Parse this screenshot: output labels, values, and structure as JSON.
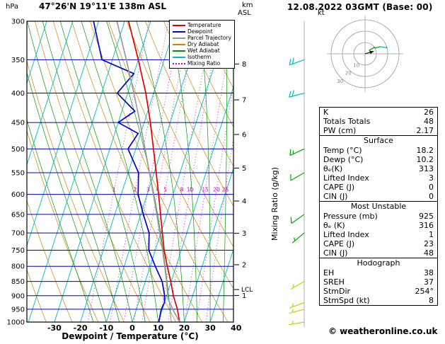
{
  "header": {
    "pressure_unit": "hPa",
    "station": "47°26'N 19°11'E 138m ASL",
    "altitude_unit_top": "km",
    "altitude_unit_bottom": "ASL",
    "datetime": "12.08.2022 03GMT (Base: 00)"
  },
  "legend": {
    "items": [
      {
        "label": "Temperature",
        "key": "temperature",
        "dashed": false
      },
      {
        "label": "Dewpoint",
        "key": "dewpoint",
        "dashed": false
      },
      {
        "label": "Parcel Trajectory",
        "key": "parcel",
        "dashed": false
      },
      {
        "label": "Dry Adiabat",
        "key": "dry_adiabat",
        "dashed": false
      },
      {
        "label": "Wet Adiabat",
        "key": "wet_adiabat",
        "dashed": false
      },
      {
        "label": "Isotherm",
        "key": "isotherm",
        "dashed": false
      },
      {
        "label": "Mixing Ratio",
        "key": "mixing_ratio",
        "dashed": true
      }
    ]
  },
  "colors": {
    "temperature": "#dd0000",
    "dewpoint": "#0000cc",
    "parcel": "#999999",
    "dry_adiabat": "#cc8800",
    "wet_adiabat": "#009900",
    "isotherm": "#00bbbb",
    "mixing_ratio": "#cc00cc",
    "pressure_line": "#0000bb",
    "frame": "#000000",
    "barb_upper": "#00bbbb",
    "barb_mid": "#00aa00",
    "barb_low": "#cccc00",
    "hodo_grid": "#999999"
  },
  "axes": {
    "pressure_ticks": [
      300,
      350,
      400,
      450,
      500,
      550,
      600,
      650,
      700,
      750,
      800,
      850,
      900,
      950,
      1000
    ],
    "temp_ticks": [
      -30,
      -20,
      -10,
      0,
      10,
      20,
      30,
      40
    ],
    "xlabel": "Dewpoint / Temperature (°C)",
    "mixing_ratio_axis_label": "Mixing Ratio (g/kg)",
    "km_ticks": [
      1,
      2,
      3,
      4,
      5,
      6,
      7,
      8
    ],
    "lcl_label": "LCL"
  },
  "chart_data": {
    "type": "line",
    "variant": "skew-t-log-p",
    "title": "47°26'N 19°11'E 138m ASL",
    "x_axis": {
      "label": "Dewpoint / Temperature (°C)",
      "ticks": [
        -30,
        -20,
        -10,
        0,
        10,
        20,
        30,
        40
      ]
    },
    "y_axis": {
      "label": "hPa",
      "scale": "log",
      "ticks": [
        300,
        350,
        400,
        450,
        500,
        550,
        600,
        650,
        700,
        750,
        800,
        850,
        900,
        950,
        1000
      ]
    },
    "km_axis": {
      "ticks": [
        1,
        2,
        3,
        4,
        5,
        6,
        7,
        8
      ]
    },
    "mixing_ratio_values": [
      1,
      2,
      3,
      4,
      5,
      8,
      10,
      15,
      20,
      25
    ],
    "lcl_pressure": 878,
    "series": [
      {
        "name": "Temperature",
        "color_key": "temperature",
        "points": [
          [
            1000,
            18.2
          ],
          [
            950,
            15.8
          ],
          [
            925,
            14.2
          ],
          [
            900,
            12.6
          ],
          [
            850,
            9.8
          ],
          [
            800,
            6.6
          ],
          [
            750,
            3.4
          ],
          [
            700,
            0.6
          ],
          [
            650,
            -2.4
          ],
          [
            600,
            -5.6
          ],
          [
            550,
            -9.2
          ],
          [
            500,
            -13.2
          ],
          [
            450,
            -17.6
          ],
          [
            400,
            -23.0
          ],
          [
            350,
            -30.0
          ],
          [
            300,
            -38.5
          ]
        ]
      },
      {
        "name": "Dewpoint",
        "color_key": "dewpoint",
        "points": [
          [
            1000,
            10.2
          ],
          [
            950,
            9.6
          ],
          [
            925,
            10.0
          ],
          [
            900,
            9.2
          ],
          [
            850,
            6.5
          ],
          [
            800,
            2.0
          ],
          [
            750,
            -2.5
          ],
          [
            700,
            -4.5
          ],
          [
            650,
            -9.0
          ],
          [
            600,
            -13.5
          ],
          [
            550,
            -16.0
          ],
          [
            500,
            -23.0
          ],
          [
            470,
            -21.0
          ],
          [
            450,
            -30.0
          ],
          [
            430,
            -25.0
          ],
          [
            400,
            -34.0
          ],
          [
            370,
            -30.0
          ],
          [
            350,
            -44.0
          ],
          [
            300,
            -52.0
          ]
        ]
      },
      {
        "name": "Parcel Trajectory",
        "color_key": "parcel",
        "points": [
          [
            1000,
            18.2
          ],
          [
            950,
            14.0
          ],
          [
            910,
            10.8
          ],
          [
            850,
            8.2
          ],
          [
            800,
            5.6
          ],
          [
            750,
            2.8
          ],
          [
            700,
            -0.4
          ],
          [
            650,
            -3.8
          ],
          [
            600,
            -7.6
          ],
          [
            550,
            -11.8
          ],
          [
            500,
            -16.4
          ],
          [
            450,
            -21.6
          ],
          [
            400,
            -27.6
          ],
          [
            350,
            -34.6
          ],
          [
            300,
            -43.0
          ]
        ]
      }
    ],
    "wind_barbs": [
      {
        "p": 350,
        "dir": 250,
        "spd": 20,
        "level": "upper"
      },
      {
        "p": 400,
        "dir": 255,
        "spd": 20,
        "level": "upper"
      },
      {
        "p": 500,
        "dir": 245,
        "spd": 15,
        "level": "mid"
      },
      {
        "p": 550,
        "dir": 240,
        "spd": 10,
        "level": "mid"
      },
      {
        "p": 650,
        "dir": 235,
        "spd": 10,
        "level": "mid"
      },
      {
        "p": 700,
        "dir": 230,
        "spd": 5,
        "level": "mid"
      },
      {
        "p": 850,
        "dir": 240,
        "spd": 5,
        "level": "low"
      },
      {
        "p": 925,
        "dir": 250,
        "spd": 5,
        "level": "low"
      },
      {
        "p": 950,
        "dir": 255,
        "spd": 5,
        "level": "low"
      },
      {
        "p": 1000,
        "dir": 260,
        "spd": 5,
        "level": "low"
      }
    ],
    "hodograph": {
      "unit": "kt",
      "rings_kt": [
        10,
        20,
        30
      ],
      "storm_dir_deg": 254,
      "storm_speed_kt": 8
    }
  },
  "hodograph": {
    "unit_label": "kt",
    "ring_labels": [
      "10",
      "20",
      "30"
    ]
  },
  "table": {
    "sections": [
      {
        "title": "",
        "rows": [
          [
            "K",
            "26"
          ],
          [
            "Totals Totals",
            "48"
          ],
          [
            "PW (cm)",
            "2.17"
          ]
        ]
      },
      {
        "title": "Surface",
        "rows": [
          [
            "Temp (°C)",
            "18.2"
          ],
          [
            "Dewp (°C)",
            "10.2"
          ],
          [
            "θₑ(K)",
            "313"
          ],
          [
            "Lifted Index",
            "3"
          ],
          [
            "CAPE (J)",
            "0"
          ],
          [
            "CIN (J)",
            "0"
          ]
        ]
      },
      {
        "title": "Most Unstable",
        "rows": [
          [
            "Pressure (mb)",
            "925"
          ],
          [
            "θₑ (K)",
            "316"
          ],
          [
            "Lifted Index",
            "1"
          ],
          [
            "CAPE (J)",
            "23"
          ],
          [
            "CIN (J)",
            "48"
          ]
        ]
      },
      {
        "title": "Hodograph",
        "rows": [
          [
            "EH",
            "38"
          ],
          [
            "SREH",
            "37"
          ],
          [
            "StmDir",
            "254°"
          ],
          [
            "StmSpd (kt)",
            "8"
          ]
        ]
      }
    ]
  },
  "footer": {
    "copyright": "© weatheronline.co.uk"
  }
}
